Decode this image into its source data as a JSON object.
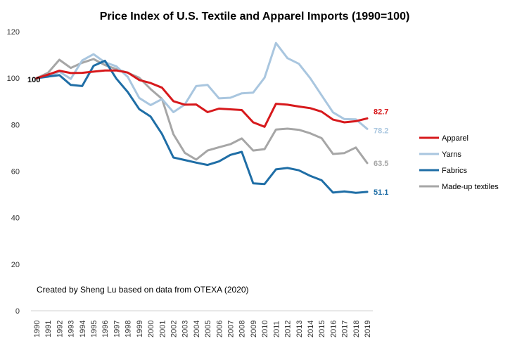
{
  "chart_data": {
    "type": "line",
    "title": "Price Index of U.S. Textile and Apparel Imports (1990=100)",
    "xlabel": "",
    "ylabel": "",
    "ylim": [
      0,
      120
    ],
    "yticks": [
      0,
      20,
      40,
      60,
      80,
      100,
      120
    ],
    "x": [
      "1990",
      "1991",
      "1992",
      "1993",
      "1994",
      "1995",
      "1996",
      "1997",
      "1998",
      "1999",
      "2000",
      "2001",
      "2002",
      "2003",
      "2004",
      "2005",
      "2006",
      "2007",
      "2008",
      "2009",
      "2010",
      "2011",
      "2012",
      "2013",
      "2014",
      "2015",
      "2016",
      "2017",
      "2018",
      "2019"
    ],
    "series": [
      {
        "name": "Apparel",
        "color": "#d7191c",
        "end_label": "82.7",
        "values": [
          100,
          101.5,
          103.2,
          102.2,
          102.3,
          102.8,
          103.3,
          103.3,
          102.4,
          99.2,
          97.9,
          95.9,
          90.1,
          88.6,
          88.7,
          85.4,
          86.9,
          86.6,
          86.3,
          81.0,
          79.1,
          89.0,
          88.6,
          87.8,
          87.1,
          85.6,
          82.2,
          81.0,
          81.5,
          82.7
        ]
      },
      {
        "name": "Yarns",
        "color": "#a9c6df",
        "end_label": "78.2",
        "values": [
          100,
          100.6,
          102.8,
          99.7,
          107.6,
          110.3,
          106.8,
          105.1,
          100.5,
          91.5,
          88.4,
          91.0,
          85.4,
          88.7,
          96.6,
          97.1,
          91.3,
          91.6,
          93.5,
          93.8,
          100.2,
          115.1,
          108.6,
          106.2,
          100.0,
          92.6,
          85.3,
          82.4,
          82.3,
          78.2
        ]
      },
      {
        "name": "Fabrics",
        "color": "#1f6ea6",
        "end_label": "51.1",
        "values": [
          100,
          100.7,
          101.3,
          97.1,
          96.6,
          105.3,
          107.5,
          99.8,
          94.0,
          86.7,
          83.5,
          76.0,
          65.9,
          64.8,
          63.7,
          62.7,
          64.2,
          67.0,
          68.3,
          54.8,
          54.5,
          60.8,
          61.4,
          60.4,
          58.0,
          56.1,
          50.8,
          51.3,
          50.7,
          51.1
        ]
      },
      {
        "name": "Made-up textiles",
        "color": "#a6a6a6",
        "end_label": "63.5",
        "values": [
          100,
          102.3,
          107.9,
          104.4,
          106.6,
          108.2,
          105.6,
          103.9,
          102.3,
          100.2,
          95.3,
          91.1,
          75.9,
          67.9,
          65.0,
          68.9,
          70.3,
          71.6,
          74.1,
          68.9,
          69.5,
          77.9,
          78.3,
          77.8,
          76.3,
          74.2,
          67.4,
          67.8,
          70.2,
          63.5
        ]
      }
    ],
    "start_label": "100",
    "annotation": "Created by Sheng Lu based on data from OTEXA (2020)",
    "legend_position": "right",
    "grid": false
  }
}
